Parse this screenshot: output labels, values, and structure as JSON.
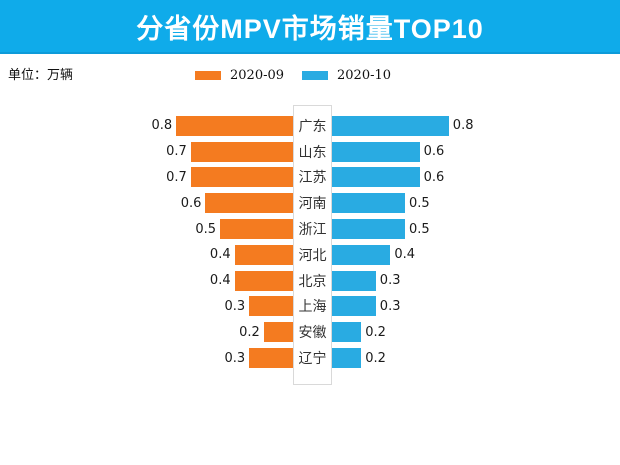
{
  "header": {
    "title": "分省份MPV市场销量TOP10",
    "unit_label": "单位：万辆"
  },
  "colors": {
    "banner_blue": "#0FABEA",
    "banner_border": "#0D9BD9",
    "orange": "#F47B20",
    "blue": "#29ABE2",
    "center_box_border": "#d9d9d9"
  },
  "chart_data": {
    "type": "bar",
    "variant": "tornado-paired-horizontal",
    "title": "分省份MPV市场销量TOP10",
    "unit": "万辆",
    "categories": [
      "广东",
      "山东",
      "江苏",
      "河南",
      "浙江",
      "河北",
      "北京",
      "上海",
      "安徽",
      "辽宁"
    ],
    "series": [
      {
        "name": "2020-09",
        "side": "left",
        "color": "#F47B20",
        "values": [
          0.8,
          0.7,
          0.7,
          0.6,
          0.5,
          0.4,
          0.4,
          0.3,
          0.2,
          0.3
        ]
      },
      {
        "name": "2020-10",
        "side": "right",
        "color": "#29ABE2",
        "values": [
          0.8,
          0.6,
          0.6,
          0.5,
          0.5,
          0.4,
          0.3,
          0.3,
          0.2,
          0.2
        ]
      }
    ],
    "value_labels": true,
    "xmax": 0.8,
    "legend_position": "top-center",
    "grid": false
  }
}
